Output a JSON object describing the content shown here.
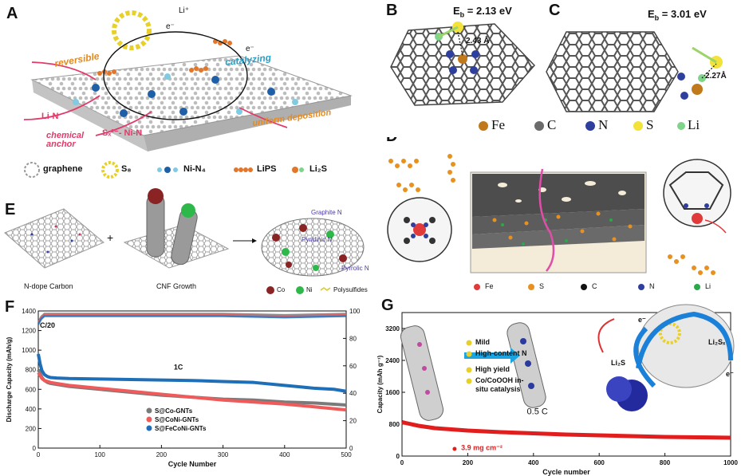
{
  "panels": {
    "A": {
      "label": "A",
      "labels": {
        "li_plus": "Li⁺",
        "e_minus_1": "e⁻",
        "e_minus_2": "e⁻",
        "reversible": "reversible",
        "catalyzing": "catalyzing",
        "uniform_deposition": "uniform deposition",
        "li_n": "Li-N",
        "sx_ni_n": "Sₓ²⁻- Ni-N",
        "chemical_anchor": "chemical anchor"
      },
      "legend": [
        "graphene",
        "S₈",
        "Ni-N₄",
        "LiPS",
        "Li₂S"
      ]
    },
    "B": {
      "label": "B",
      "energy": "E♭ = 2.13 eV",
      "energy_main": "E",
      "energy_sub": "b",
      "energy_val": " = 2.13 eV",
      "distance": "2.43 Å"
    },
    "C": {
      "label": "C",
      "energy_main": "E",
      "energy_sub": "b",
      "energy_val": " = 3.01 eV",
      "distance": "2.27Å"
    },
    "BC_legend": [
      "Fe",
      "C",
      "N",
      "S",
      "Li"
    ],
    "D": {
      "label": "D",
      "legend": [
        "Fe",
        "S",
        "C",
        "N",
        "Li"
      ]
    },
    "E": {
      "label": "E",
      "step1": "N-dope Carbon",
      "step2": "CNF Growth",
      "plus": "+",
      "annotations": [
        "Graphite N",
        "Pyridinic N",
        "Pyrrolic N"
      ],
      "legend": [
        "Co",
        "Ni",
        "Polysulfides"
      ]
    },
    "F": {
      "label": "F"
    },
    "G": {
      "label": "G",
      "features": [
        "Mild",
        "High-content N",
        "High yield",
        "Co/CoOOH in-situ catalysis"
      ],
      "labels": {
        "li2sx": "Li₂Sₓ",
        "li2s": "Li₂S",
        "e1": "e⁻",
        "e2": "e⁻"
      }
    }
  },
  "colors": {
    "gray_series": "#7a7a7a",
    "red_series": "#ef5a5a",
    "blue_series": "#1f6fb8",
    "fe": "#c07a1c",
    "c": "#6b6b6b",
    "n": "#2e3f9e",
    "s": "#f2e23a",
    "li": "#7fd48a",
    "orange_text": "#e58a1f",
    "pink_text": "#e23a6a",
    "cyan_text": "#2aa0c8"
  },
  "chart_data": [
    {
      "panel": "F",
      "type": "line",
      "xlabel": "Cycle Number",
      "ylabel": "Discharge Capacity (mAh/g)",
      "y2label": "",
      "xlim": [
        0,
        500
      ],
      "ylim": [
        0,
        1400
      ],
      "y2lim": [
        0,
        100
      ],
      "xticks": [
        0,
        100,
        200,
        300,
        400,
        500
      ],
      "yticks": [
        0,
        200,
        400,
        600,
        800,
        1000,
        1200,
        1400
      ],
      "y2ticks": [
        0,
        20,
        40,
        60,
        80,
        100
      ],
      "annotations": [
        "C/20",
        "1C"
      ],
      "series": [
        {
          "name": "S@Co-GNTs",
          "color": "#7a7a7a",
          "x": [
            0,
            3,
            6,
            10,
            15,
            20,
            30,
            50,
            100,
            150,
            200,
            250,
            300,
            350,
            400,
            450,
            500
          ],
          "y": [
            800,
            760,
            720,
            690,
            670,
            660,
            650,
            630,
            600,
            570,
            540,
            520,
            500,
            490,
            470,
            460,
            440
          ]
        },
        {
          "name": "S@CoNi-GNTs",
          "color": "#ef5a5a",
          "x": [
            0,
            3,
            6,
            10,
            15,
            20,
            30,
            50,
            100,
            150,
            200,
            250,
            300,
            350,
            400,
            450,
            500
          ],
          "y": [
            770,
            740,
            710,
            690,
            680,
            670,
            660,
            640,
            610,
            580,
            550,
            520,
            490,
            470,
            450,
            420,
            390
          ]
        },
        {
          "name": "S@FeCoNi-GNTs",
          "color": "#1f6fb8",
          "x": [
            0,
            3,
            6,
            10,
            15,
            20,
            30,
            50,
            100,
            150,
            200,
            250,
            300,
            350,
            400,
            450,
            480,
            500
          ],
          "y": [
            960,
            860,
            790,
            750,
            730,
            720,
            715,
            710,
            705,
            700,
            695,
            690,
            680,
            670,
            640,
            610,
            600,
            580
          ]
        }
      ],
      "efficiency": {
        "x": [
          0,
          5,
          10,
          100,
          200,
          300,
          400,
          500
        ],
        "y": [
          92,
          96,
          98,
          98,
          98,
          98,
          97,
          98
        ]
      }
    },
    {
      "panel": "G",
      "type": "line",
      "xlabel": "Cycle number",
      "ylabel": "Capacity (mAh g⁻¹)",
      "xlim": [
        0,
        1000
      ],
      "ylim": [
        0,
        3600
      ],
      "xticks": [
        0,
        200,
        400,
        600,
        800,
        1000
      ],
      "yticks": [
        0,
        800,
        1600,
        2400,
        3200
      ],
      "annotations": [
        "0.5 C",
        "3.9 mg cm⁻²"
      ],
      "series": [
        {
          "name": "",
          "color": "#e11d1d",
          "x": [
            0,
            50,
            100,
            200,
            300,
            400,
            500,
            600,
            700,
            800,
            900,
            1000
          ],
          "y": [
            850,
            760,
            700,
            640,
            600,
            570,
            540,
            520,
            500,
            480,
            470,
            460
          ]
        }
      ]
    }
  ]
}
